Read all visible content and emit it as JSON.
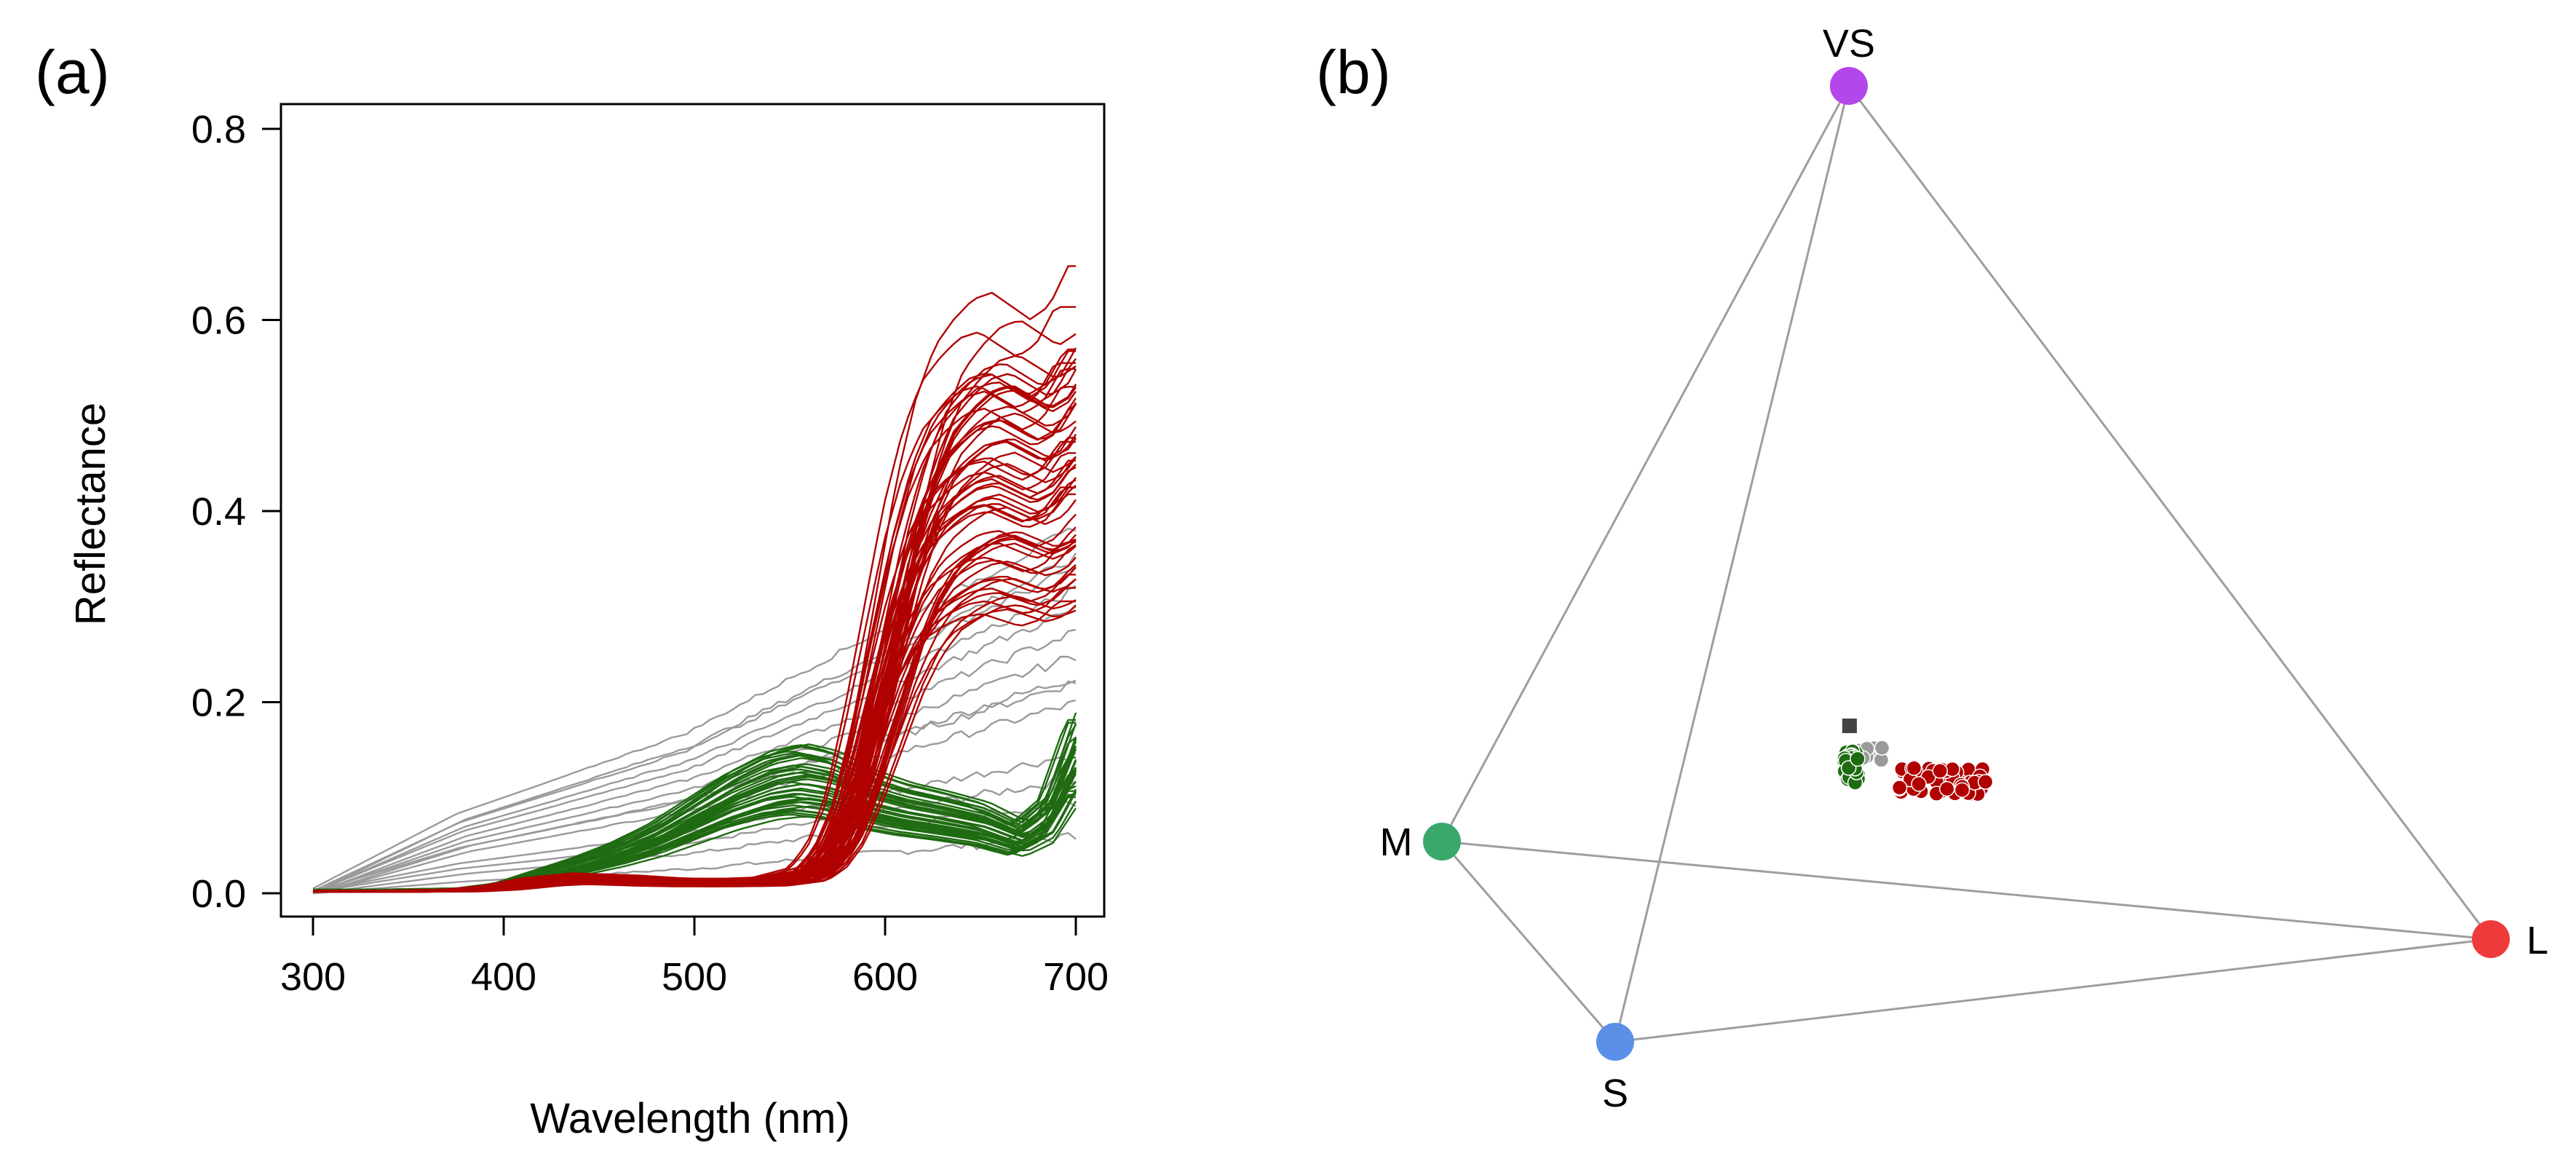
{
  "panels": {
    "a": {
      "label": "(a)"
    },
    "b": {
      "label": "(b)"
    }
  },
  "chart_data": [
    {
      "type": "line",
      "panel": "(a)",
      "xlabel": "Wavelength (nm)",
      "ylabel": "Reflectance",
      "xlim": [
        300,
        700
      ],
      "ylim": [
        0,
        0.8
      ],
      "xticks": [
        "300",
        "400",
        "500",
        "600",
        "700"
      ],
      "yticks": [
        "0.0",
        "0.2",
        "0.4",
        "0.6",
        "0.8"
      ],
      "colors": {
        "gray": "#9a9a9a",
        "green": "#1f6b12",
        "red": "#b00000"
      },
      "groups": [
        {
          "name": "gray",
          "count": 14,
          "base_curve": {
            "x": [
              300,
              320,
              340,
              360,
              380,
              400,
              420,
              440,
              460,
              480,
              500,
              520,
              540,
              560,
              580,
              600,
              620,
              640,
              660,
              680,
              700
            ],
            "y": [
              0.0,
              0.015,
              0.03,
              0.045,
              0.06,
              0.07,
              0.08,
              0.09,
              0.1,
              0.11,
              0.12,
              0.135,
              0.15,
              0.165,
              0.18,
              0.195,
              0.21,
              0.225,
              0.24,
              0.255,
              0.27
            ]
          },
          "scale_range": [
            0.3,
            1.3
          ]
        },
        {
          "name": "green",
          "count": 38,
          "base_curve": {
            "x": [
              300,
              340,
              380,
              400,
              420,
              440,
              460,
              480,
              500,
              520,
              540,
              555,
              570,
              590,
              610,
              630,
              650,
              670,
              685,
              700
            ],
            "y": [
              0.003,
              0.003,
              0.004,
              0.008,
              0.018,
              0.028,
              0.04,
              0.055,
              0.075,
              0.095,
              0.11,
              0.115,
              0.11,
              0.095,
              0.085,
              0.078,
              0.07,
              0.055,
              0.075,
              0.14
            ]
          },
          "scale_range": [
            0.7,
            1.35
          ]
        },
        {
          "name": "red",
          "count": 60,
          "base_curve": {
            "x": [
              300,
              340,
              380,
              400,
              420,
              440,
              460,
              480,
              500,
              520,
              540,
              560,
              570,
              580,
              590,
              600,
              610,
              620,
              630,
              640,
              650,
              660,
              670,
              680,
              690,
              700
            ],
            "y": [
              0.002,
              0.002,
              0.003,
              0.006,
              0.012,
              0.015,
              0.014,
              0.012,
              0.011,
              0.011,
              0.012,
              0.02,
              0.04,
              0.08,
              0.15,
              0.23,
              0.31,
              0.37,
              0.41,
              0.43,
              0.445,
              0.45,
              0.44,
              0.43,
              0.44,
              0.47
            ]
          },
          "scale_range": [
            0.65,
            1.32
          ]
        }
      ]
    },
    {
      "type": "scatter",
      "panel": "(b)",
      "title": "",
      "vertices": [
        {
          "label": "VS",
          "color": "#b347ea"
        },
        {
          "label": "M",
          "color": "#3aa86b"
        },
        {
          "label": "S",
          "color": "#5b8fe8"
        },
        {
          "label": "L",
          "color": "#ee3a3a"
        }
      ],
      "clusters": [
        {
          "name": "achromatic",
          "color": "#444444",
          "shape": "square",
          "count": 1
        },
        {
          "name": "gray",
          "color": "#9a9a9a",
          "shape": "circle",
          "count": 14
        },
        {
          "name": "green",
          "color": "#1f6b12",
          "shape": "circle",
          "count": 38
        },
        {
          "name": "red",
          "color": "#b00000",
          "shape": "circle",
          "count": 60
        }
      ]
    }
  ]
}
